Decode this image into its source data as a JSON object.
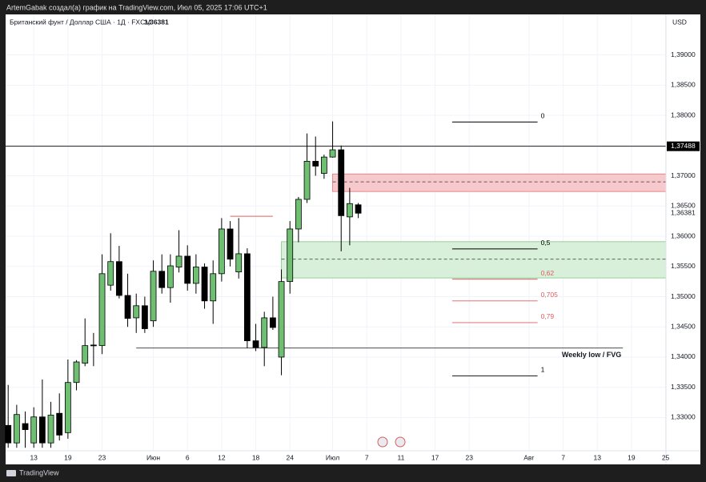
{
  "chart_data": {
    "type": "candlestick",
    "attribution": "ArtemGabak создал(а) график на TradingView.com, Июл 05, 2025 17:06 UTC+1",
    "title": "Британский фунт / Доллар США · 1Д · FXCM",
    "last_price": {
      "value": 1.36381,
      "label": "1,36381"
    },
    "currency": "USD",
    "brand": "TradingView",
    "up_color": "#6fbf73",
    "down_color": "#000000",
    "xlim": [
      -0.3,
      77.04
    ],
    "ylim": [
      1.3245,
      1.3967
    ],
    "grid": true,
    "xticks": [
      {
        "value": 3,
        "label": "13"
      },
      {
        "value": 7,
        "label": "19"
      },
      {
        "value": 11,
        "label": "23"
      },
      {
        "value": 17,
        "label": "Июн"
      },
      {
        "value": 21,
        "label": "6"
      },
      {
        "value": 25,
        "label": "12"
      },
      {
        "value": 29,
        "label": "18"
      },
      {
        "value": 33,
        "label": "24"
      },
      {
        "value": 38,
        "label": "Июл"
      },
      {
        "value": 42,
        "label": "7"
      },
      {
        "value": 46,
        "label": "11"
      },
      {
        "value": 50,
        "label": "17"
      },
      {
        "value": 54,
        "label": "23"
      },
      {
        "value": 61,
        "label": "Авг"
      },
      {
        "value": 65,
        "label": "7"
      },
      {
        "value": 69,
        "label": "13"
      },
      {
        "value": 73,
        "label": "19"
      },
      {
        "value": 77,
        "label": "25"
      }
    ],
    "yticks": [
      {
        "value": 1.33,
        "label": "1,33000"
      },
      {
        "value": 1.335,
        "label": "1,33500"
      },
      {
        "value": 1.34,
        "label": "1,34000"
      },
      {
        "value": 1.345,
        "label": "1,34500"
      },
      {
        "value": 1.35,
        "label": "1,35000"
      },
      {
        "value": 1.355,
        "label": "1,35500"
      },
      {
        "value": 1.36,
        "label": "1,36000"
      },
      {
        "value": 1.365,
        "label": "1,36500"
      },
      {
        "value": 1.37,
        "label": "1,37000"
      },
      {
        "value": 1.375,
        "label": "1,37500"
      },
      {
        "value": 1.38,
        "label": "1,38000"
      },
      {
        "value": 1.385,
        "label": "1,38500"
      },
      {
        "value": 1.39,
        "label": "1,39000"
      }
    ],
    "open": [
      1.3287,
      1.3258,
      1.329,
      1.3258,
      1.3301,
      1.3258,
      1.3307,
      1.3275,
      1.3358,
      1.339,
      1.342,
      1.3419,
      1.3519,
      1.3558,
      1.3502,
      1.3465,
      1.3485,
      1.346,
      1.3542,
      1.3515,
      1.3549,
      1.3567,
      1.3522,
      1.3549,
      1.3493,
      1.3538,
      1.3612,
      1.3541,
      1.3571,
      1.3427,
      1.3416,
      1.3465,
      1.34,
      1.3525,
      1.3612,
      1.3661,
      1.3724,
      1.3704,
      1.3731,
      1.3743,
      1.3632,
      1.3652
    ],
    "high": [
      1.3354,
      1.3321,
      1.331,
      1.3317,
      1.3363,
      1.3326,
      1.334,
      1.3396,
      1.3395,
      1.3464,
      1.344,
      1.357,
      1.3605,
      1.3584,
      1.3538,
      1.3505,
      1.35,
      1.356,
      1.357,
      1.357,
      1.361,
      1.3585,
      1.357,
      1.3555,
      1.356,
      1.363,
      1.3625,
      1.363,
      1.358,
      1.3455,
      1.3475,
      1.35,
      1.3545,
      1.3625,
      1.3665,
      1.377,
      1.3765,
      1.3735,
      1.379,
      1.375,
      1.368,
      1.3655
    ],
    "low": [
      1.325,
      1.325,
      1.325,
      1.325,
      1.325,
      1.325,
      1.3262,
      1.3265,
      1.3345,
      1.3385,
      1.3385,
      1.3405,
      1.351,
      1.3497,
      1.345,
      1.344,
      1.344,
      1.345,
      1.3505,
      1.349,
      1.354,
      1.351,
      1.3505,
      1.348,
      1.3455,
      1.3525,
      1.355,
      1.353,
      1.3415,
      1.341,
      1.3385,
      1.3445,
      1.337,
      1.3505,
      1.359,
      1.3655,
      1.37,
      1.3695,
      1.373,
      1.3575,
      1.3585,
      1.363
    ],
    "close": [
      1.3258,
      1.3305,
      1.328,
      1.3301,
      1.3258,
      1.3304,
      1.3271,
      1.3358,
      1.3392,
      1.3419,
      1.3419,
      1.3538,
      1.3558,
      1.3502,
      1.3464,
      1.3485,
      1.3447,
      1.3542,
      1.3515,
      1.3551,
      1.3567,
      1.3522,
      1.3549,
      1.3493,
      1.3538,
      1.3612,
      1.3562,
      1.3571,
      1.3427,
      1.3416,
      1.3465,
      1.3449,
      1.3525,
      1.3612,
      1.3661,
      1.3724,
      1.3716,
      1.3731,
      1.3743,
      1.3634,
      1.3654,
      1.36381
    ],
    "price_line": {
      "value": 1.37488,
      "label": "1,37488"
    },
    "zones": [
      {
        "low": 1.3674,
        "high": 1.3703,
        "mid": 1.369,
        "x": [
          38,
          77.04
        ],
        "fill": "#f7c9cc",
        "stroke": "#e57373"
      },
      {
        "low": 1.3531,
        "high": 1.3591,
        "mid": 1.3562,
        "x": [
          32,
          77.04
        ],
        "fill": "#d8efd9",
        "stroke": "#81c784"
      }
    ],
    "fib_levels": [
      {
        "label": "0",
        "value": 1.3789,
        "color": "#000000"
      },
      {
        "label": "0,5",
        "value": 1.3579,
        "color": "#000000"
      },
      {
        "label": "0,62",
        "value": 1.3529,
        "color": "#e05d5d"
      },
      {
        "label": "0,705",
        "value": 1.3493,
        "color": "#e05d5d"
      },
      {
        "label": "0,79",
        "value": 1.3457,
        "color": "#e05d5d"
      },
      {
        "label": "1",
        "value": 1.3369,
        "color": "#000000"
      }
    ],
    "fib_x": [
      52,
      62
    ],
    "weekly_low": {
      "label": "Weekly low / FVG",
      "value": 1.3415,
      "x": [
        15,
        72
      ]
    },
    "red_line": {
      "value": 1.3633,
      "x": [
        26,
        31
      ]
    }
  }
}
